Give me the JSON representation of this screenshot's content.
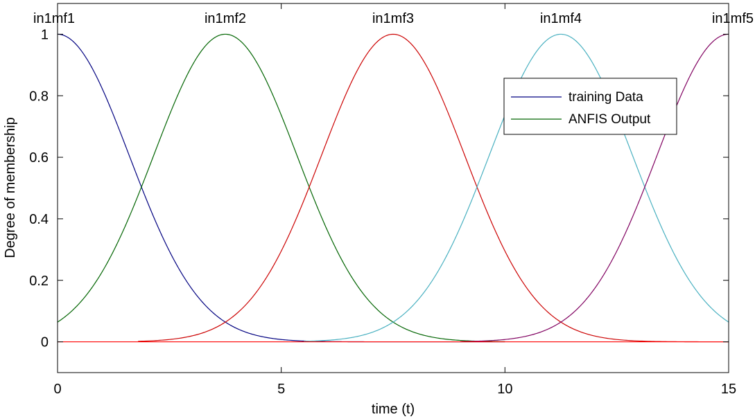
{
  "chart_data": {
    "type": "line",
    "xlabel": "time (t)",
    "ylabel": "Degree of membership",
    "xlim": [
      0,
      15
    ],
    "ylim": [
      -0.1,
      1.1
    ],
    "xticks": [
      "0",
      "5",
      "10",
      "15"
    ],
    "yticks": [
      "0",
      "0.2",
      "0.4",
      "0.6",
      "0.8",
      "1"
    ],
    "grid": false,
    "legend": {
      "placement": "top-right",
      "entries": [
        {
          "label": "training Data",
          "color": "#000080"
        },
        {
          "label": "ANFIS Output",
          "color": "#006400"
        }
      ]
    },
    "baseline": {
      "y": 0,
      "x_range": [
        0,
        15
      ],
      "color": "#ff0000"
    },
    "series": [
      {
        "name": "in1mf1",
        "type": "gaussian",
        "center": 0,
        "sigma": 1.6,
        "x_range": [
          0,
          10
        ],
        "color": "#000080"
      },
      {
        "name": "in1mf2",
        "type": "gaussian",
        "center": 3.75,
        "sigma": 1.6,
        "x_range": [
          0,
          10
        ],
        "color": "#006400"
      },
      {
        "name": "in1mf3",
        "type": "gaussian",
        "center": 7.5,
        "sigma": 1.6,
        "x_range": [
          1.8,
          15
        ],
        "color": "#cc0000"
      },
      {
        "name": "in1mf4",
        "type": "gaussian",
        "center": 11.25,
        "sigma": 1.6,
        "x_range": [
          5.5,
          15
        ],
        "color": "#48b0c0"
      },
      {
        "name": "in1mf5",
        "type": "gaussian",
        "center": 15,
        "sigma": 1.6,
        "x_range": [
          9,
          15
        ],
        "color": "#800060"
      }
    ]
  }
}
